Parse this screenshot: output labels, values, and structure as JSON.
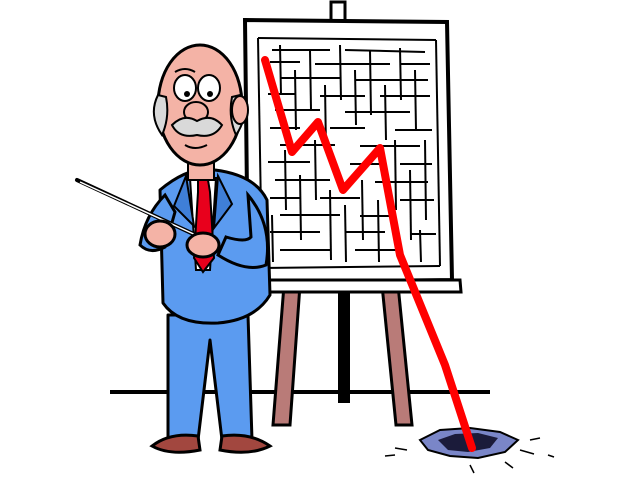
{
  "illustration": {
    "subject": "businessman-presenting-falling-chart",
    "colors": {
      "background": "#ffffff",
      "suit": "#5b9bf0",
      "suit_shadow": "#3f7fd8",
      "skin": "#f4b3a6",
      "tie": "#e8001c",
      "trend_line": "#ff0000",
      "easel_leg": "#b97b78",
      "shoe": "#a2473f",
      "board": "#ffffff",
      "hole": "#1b1b3a",
      "hole_edge": "#7a86c8",
      "outline": "#000000",
      "hair": "#d9d9d9"
    }
  }
}
